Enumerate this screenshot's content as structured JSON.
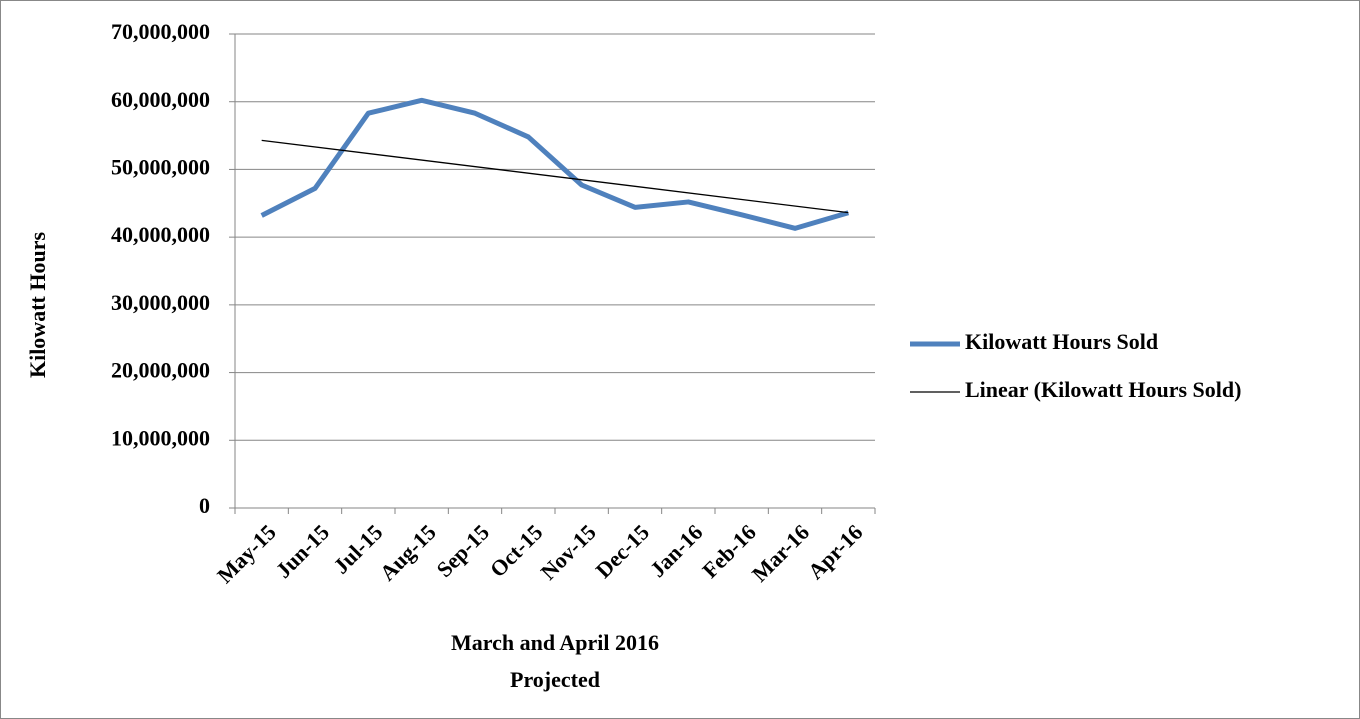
{
  "chart_data": {
    "type": "line",
    "categories": [
      "May-15",
      "Jun-15",
      "Jul-15",
      "Aug-15",
      "Sep-15",
      "Oct-15",
      "Nov-15",
      "Dec-15",
      "Jan-16",
      "Feb-16",
      "Mar-16",
      "Apr-16"
    ],
    "series": [
      {
        "name": "Kilowatt Hours Sold",
        "color": "#4f81bd",
        "values": [
          43200000,
          47200000,
          58300000,
          60200000,
          58300000,
          54800000,
          47700000,
          44400000,
          45200000,
          43300000,
          41300000,
          43600000
        ]
      }
    ],
    "trendline": {
      "name": "Linear (Kilowatt Hours Sold)",
      "color": "#000000",
      "type": "linear"
    },
    "ylabel": "Kilowatt Hours",
    "xlabel": [
      "March and April 2016",
      "Projected"
    ],
    "ylim": [
      0,
      70000000
    ],
    "yticks": [
      0,
      {
        "value": 10000000,
        "label": "10,000,000"
      },
      {
        "value": 20000000,
        "label": "20,000,000"
      },
      {
        "value": 30000000,
        "label": "30,000,000"
      },
      {
        "value": 40000000,
        "label": "40,000,000"
      },
      {
        "value": 50000000,
        "label": "50,000,000"
      },
      {
        "value": 60000000,
        "label": "60,000,000"
      },
      {
        "value": 70000000,
        "label": "70,000,000"
      }
    ],
    "grid": true,
    "legend": "right"
  }
}
